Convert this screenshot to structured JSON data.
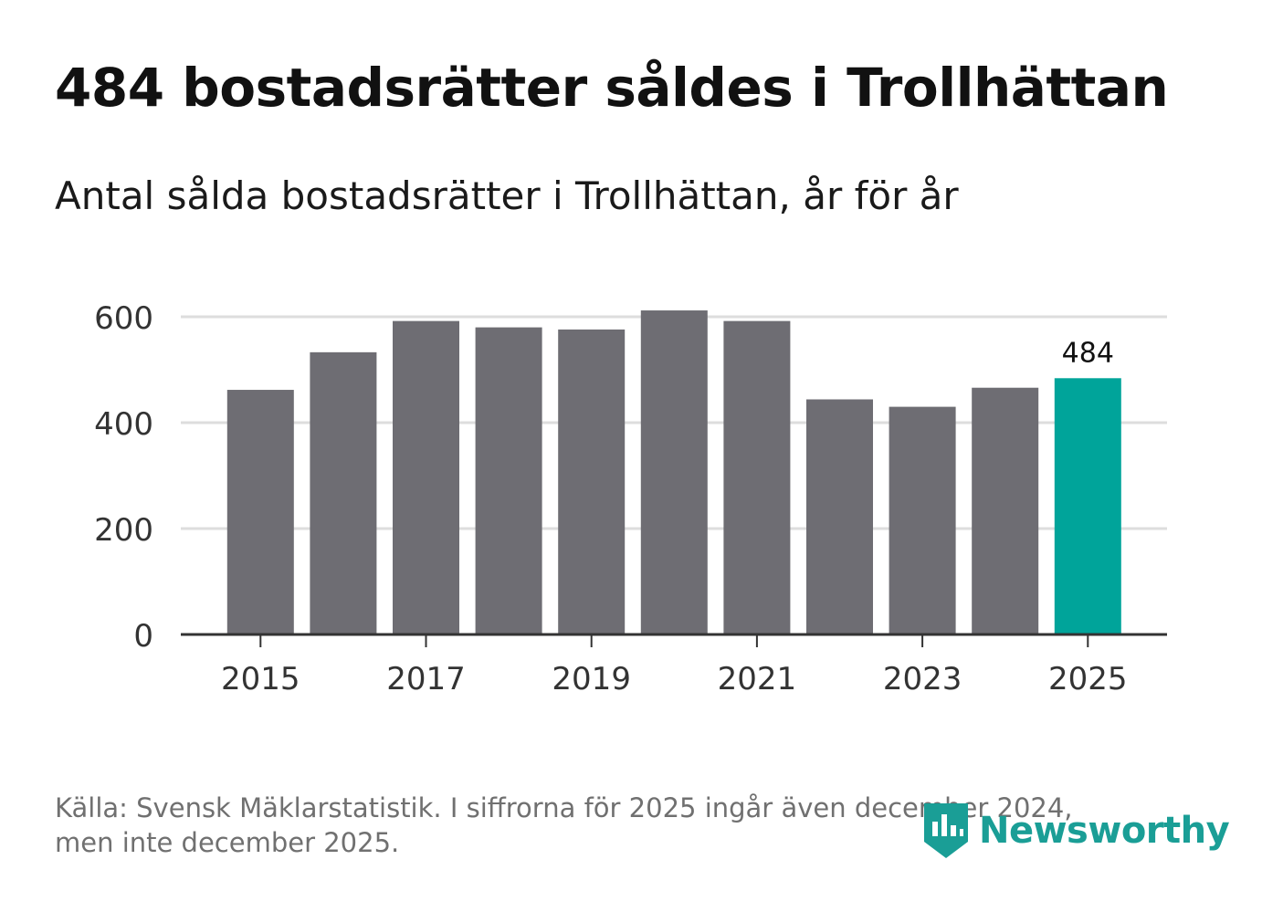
{
  "header": {
    "title": "484 bostadsrätter såldes i Trollhättan",
    "subtitle": "Antal sålda bostadsrätter i Trollhättan, år för år"
  },
  "footer": {
    "source_line1": "Källa: Svensk Mäklarstatistik. I siffrorna för 2025 ingår även december 2024,",
    "source_line2": "men inte december 2025.",
    "logo_text": "Newsworthy",
    "logo_icon": "newsworthy-bar-chart-icon"
  },
  "colors": {
    "bar": "#6e6d73",
    "highlight": "#00a49a",
    "grid": "#dddddd",
    "axis": "#333333",
    "tick_text": "#333333",
    "logo": "#1a9e96"
  },
  "chart_data": {
    "type": "bar",
    "title": "484 bostadsrätter såldes i Trollhättan",
    "subtitle": "Antal sålda bostadsrätter i Trollhättan, år för år",
    "categories": [
      2015,
      2016,
      2017,
      2018,
      2019,
      2020,
      2021,
      2022,
      2023,
      2024,
      2025
    ],
    "values": [
      462,
      533,
      592,
      580,
      576,
      612,
      592,
      444,
      430,
      466,
      484
    ],
    "highlight_index": 10,
    "data_labels": [
      {
        "index": 10,
        "text": "484"
      }
    ],
    "x_tick_labels": [
      "2015",
      "2017",
      "2019",
      "2021",
      "2023",
      "2025"
    ],
    "y_ticks": [
      0,
      200,
      400,
      600
    ],
    "ylim": [
      0,
      600
    ],
    "xlabel": "",
    "ylabel": "",
    "grid": true,
    "legend": "none"
  }
}
